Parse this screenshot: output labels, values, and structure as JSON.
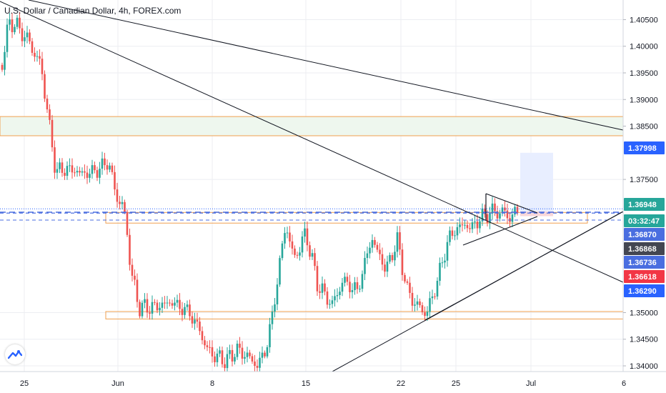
{
  "colors": {
    "up": "#26a69a",
    "down": "#ef5350",
    "zone_stroke": "#f0a050",
    "green_zone_fill": "#eef7ee",
    "red_zone_fill": "#f8d7da",
    "blue_zone_fill": "#e8eeff",
    "dashed": "#4a6ee0",
    "dotted": "#2962ff",
    "grid": "#eceef2",
    "trendline": "#131722"
  },
  "chart_data": {
    "type": "candlestick",
    "title": "U.S. Dollar / Canadian Dollar, 4h, FOREX.com",
    "ylim": [
      1.3396,
      1.406
    ],
    "y_ticks": [
      "1.40500",
      "1.40000",
      "1.39500",
      "1.39000",
      "1.38500",
      "1.37500",
      "1.35000",
      "1.34500",
      "1.34000"
    ],
    "x_ticks": [
      "25",
      "Jun",
      "8",
      "15",
      "22",
      "25",
      "Jul",
      "6"
    ],
    "price_labels": [
      {
        "text": "1.37998",
        "bg": "#2962ff",
        "fg": "#ffffff"
      },
      {
        "text": "1.36948",
        "bg": "#26a69a",
        "fg": "#ffffff"
      },
      {
        "text": "03:32:47",
        "bg": "#26a69a",
        "fg": "#ffffff"
      },
      {
        "text": "1.36870",
        "bg": "#4a6ee0",
        "fg": "#ffffff"
      },
      {
        "text": "1.36868",
        "bg": "#434651",
        "fg": "#ffffff"
      },
      {
        "text": "1.36736",
        "bg": "#4a6ee0",
        "fg": "#ffffff"
      },
      {
        "text": "1.36618",
        "bg": "#f23645",
        "fg": "#ffffff"
      },
      {
        "text": "1.36290",
        "bg": "#2962ff",
        "fg": "#ffffff"
      }
    ],
    "zones": [
      {
        "name": "green-resistance-zone",
        "y": [
          1.3832,
          1.3868
        ],
        "style": "green"
      },
      {
        "name": "orange-mid-zone",
        "y": [
          1.3668,
          1.3688
        ],
        "style": "outline"
      },
      {
        "name": "orange-support-zone",
        "y": [
          1.3488,
          1.3502
        ],
        "style": "outline"
      },
      {
        "name": "short-position-stop",
        "y": [
          1.3681,
          1.369
        ],
        "style": "red"
      },
      {
        "name": "short-position-target",
        "y": [
          1.369,
          1.38
        ],
        "style": "blue"
      }
    ],
    "horizontal_lines": [
      {
        "name": "dotted-current-price",
        "y": 1.36948,
        "style": "dotted"
      },
      {
        "name": "dashed-1-36868",
        "y": 1.36868,
        "style": "dashed"
      },
      {
        "name": "dashed-1-36870",
        "y": 1.3687,
        "style": "dashed"
      },
      {
        "name": "dashed-1-36736",
        "y": 1.36736,
        "style": "dashed"
      }
    ]
  }
}
